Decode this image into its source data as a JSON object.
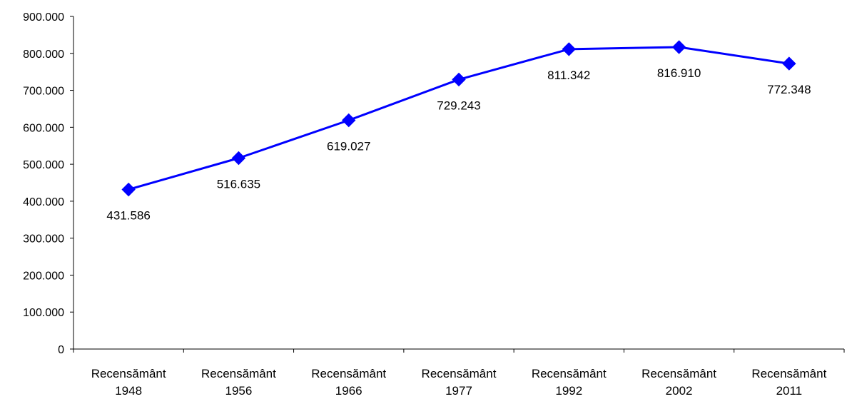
{
  "chart_data": {
    "type": "line",
    "title": "",
    "xlabel": "",
    "ylabel": "",
    "categories": [
      [
        "Recensământ",
        "1948"
      ],
      [
        "Recensământ",
        "1956"
      ],
      [
        "Recensământ",
        "1966"
      ],
      [
        "Recensământ",
        "1977"
      ],
      [
        "Recensământ",
        "1992"
      ],
      [
        "Recensământ",
        "2002"
      ],
      [
        "Recensământ",
        "2011"
      ]
    ],
    "series": [
      {
        "values": [
          431586,
          516635,
          619027,
          729243,
          811342,
          816910,
          772348
        ],
        "data_labels": [
          "431.586",
          "516.635",
          "619.027",
          "729.243",
          "811.342",
          "816.910",
          "772.348"
        ],
        "color": "#0000ff",
        "marker": "diamond"
      }
    ],
    "ylim": [
      0,
      900000
    ],
    "yticks": [
      0,
      100000,
      200000,
      300000,
      400000,
      500000,
      600000,
      700000,
      800000,
      900000
    ],
    "ytick_labels": [
      "0",
      "100.000",
      "200.000",
      "300.000",
      "400.000",
      "500.000",
      "600.000",
      "700.000",
      "800.000",
      "900.000"
    ],
    "grid": false,
    "legend": "none"
  }
}
